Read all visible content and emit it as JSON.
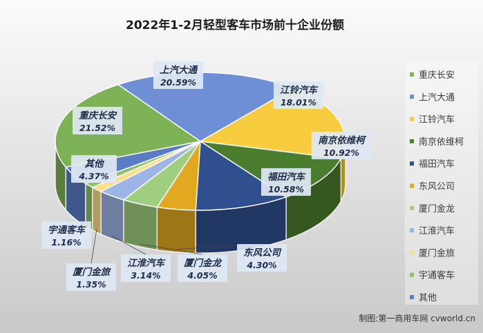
{
  "chart_data": {
    "type": "pie",
    "title": "2022年1-2月轻型客车市场前十企业份额",
    "slices": [
      {
        "name": "重庆长安",
        "value": 21.52,
        "label": "21.52%",
        "color": "#7eb257"
      },
      {
        "name": "上汽大通",
        "value": 20.59,
        "label": "20.59%",
        "color": "#6e8fd6"
      },
      {
        "name": "江铃汽车",
        "value": 18.01,
        "label": "18.01%",
        "color": "#f7cd3f"
      },
      {
        "name": "南京依维柯",
        "value": 10.92,
        "label": "10.92%",
        "color": "#4a7d2e"
      },
      {
        "name": "福田汽车",
        "value": 10.58,
        "label": "10.58%",
        "color": "#2f4f8f"
      },
      {
        "name": "东风公司",
        "value": 4.3,
        "label": "4.30%",
        "color": "#e0a91f"
      },
      {
        "name": "厦门金龙",
        "value": 4.05,
        "label": "4.05%",
        "color": "#9fcf7e"
      },
      {
        "name": "江淮汽车",
        "value": 3.14,
        "label": "3.14%",
        "color": "#9db4e6"
      },
      {
        "name": "厦门金旅",
        "value": 1.35,
        "label": "1.35%",
        "color": "#fbe08c"
      },
      {
        "name": "宇通客车",
        "value": 1.16,
        "label": "1.16%",
        "color": "#8fc16b"
      },
      {
        "name": "其他",
        "value": 4.37,
        "label": "4.37%",
        "color": "#5a7cc4"
      }
    ],
    "legend": {
      "position": "right",
      "items": [
        "重庆长安",
        "上汽大通",
        "江铃汽车",
        "南京依维柯",
        "福田汽车",
        "东风公司",
        "厦门金龙",
        "江淮汽车",
        "厦门金旅",
        "宇通客车",
        "其他"
      ]
    }
  },
  "credit": "制图:第一商用车网 cvworld.cn",
  "colors": {
    "background_top": "#fbfbfb",
    "background_bottom": "#c9c9c9",
    "label_box": "#dfe7f3"
  }
}
